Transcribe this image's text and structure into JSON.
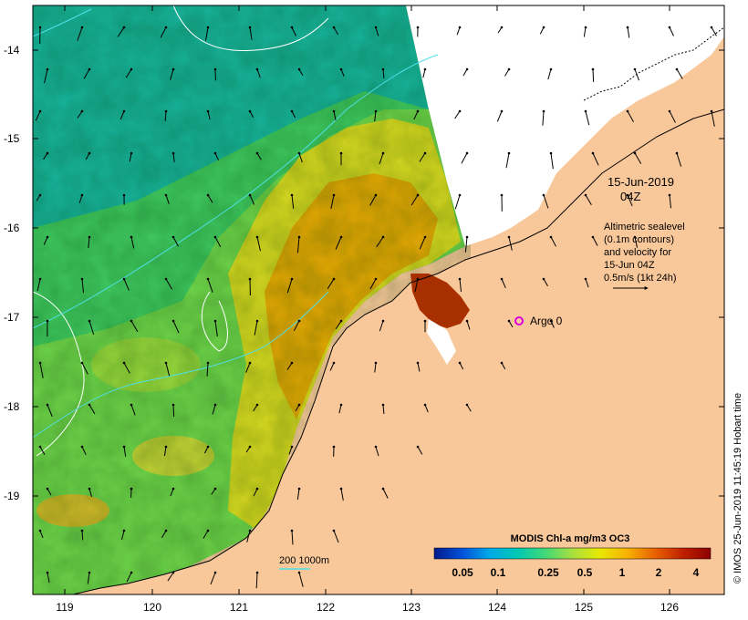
{
  "map": {
    "lon_ticks": [
      "119",
      "120",
      "121",
      "122",
      "123",
      "124",
      "125",
      "126"
    ],
    "lat_ticks": [
      "-14",
      "-15",
      "-16",
      "-17",
      "-18",
      "-19"
    ],
    "datetime": {
      "line1": "15-Jun-2019",
      "line2": "04Z"
    },
    "legend_text": {
      "line1": "Altimetric sealevel",
      "line2": "(0.1m contours)",
      "line3": "and velocity for",
      "line4": "15-Jun 04Z",
      "line5": "0.5m/s (1kt 24h)"
    },
    "argo_label": "Argo 0",
    "bathymetry_label": "200  1000m",
    "colorbar": {
      "title": "MODIS Chl-a mg/m3 OC3",
      "ticks": [
        "0.05",
        "0.1",
        "0.25",
        "0.5",
        "1",
        "2",
        "4"
      ],
      "colors": [
        "#001a8c",
        "#0050d8",
        "#00a8e8",
        "#00c8b4",
        "#40d878",
        "#a8e040",
        "#e8e800",
        "#f8b000",
        "#e86000",
        "#c02000",
        "#8c0000"
      ]
    },
    "credit": "© IMOS 25-Jun-2019 11:45:19 Hobart time",
    "colors": {
      "land": "#f9c89a",
      "cloud": "#ffffff",
      "ocean_low": "#17b39c",
      "ocean_mid": "#4fcf52",
      "ocean_high": "#e8a000",
      "contour": "#ffffff",
      "bathy": "#4fe0e8",
      "argo": "#e000e0"
    }
  }
}
